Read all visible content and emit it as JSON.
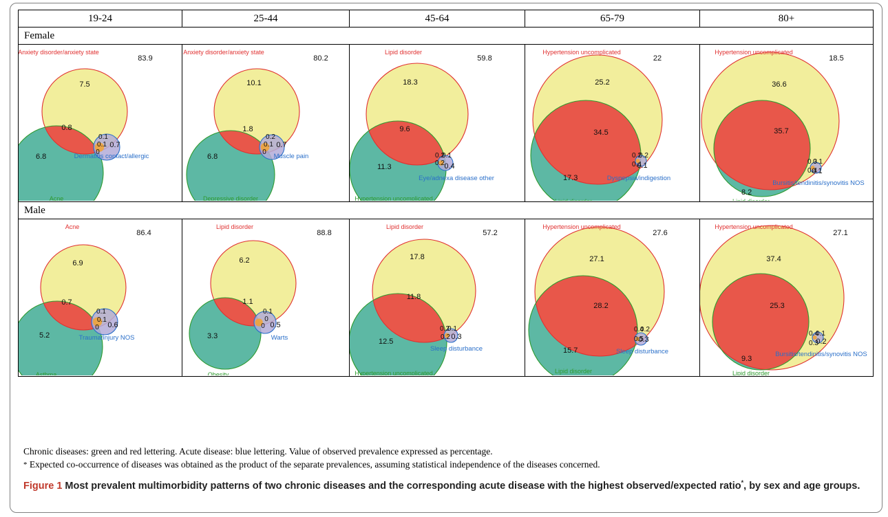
{
  "age_groups": [
    "19-24",
    "25-44",
    "45-64",
    "65-79",
    "80+"
  ],
  "rows": [
    {
      "sex": "Female",
      "cells": [
        {
          "top_label": "Anxiety disorder/anxiety state",
          "bottom_label": "Acne",
          "acute_label": "Dermatitis contact/allergic",
          "ratio": "83.9",
          "v_top": "7.5",
          "v_overlap": "0.8",
          "v_bottom": "6.8",
          "v_acute": "0.7",
          "v_s1": "0.1",
          "v_s2": "0",
          "v_s3": "0.1"
        },
        {
          "top_label": "Anxiety disorder/anxiety state",
          "bottom_label": "Depressive disorder",
          "acute_label": "Muscle pain",
          "ratio": "80.2",
          "v_top": "10.1",
          "v_overlap": "1.8",
          "v_bottom": "6.8",
          "v_acute": "0.7",
          "v_s1": "0.2",
          "v_s2": "0",
          "v_s3": "0.1"
        },
        {
          "top_label": "Lipid disorder",
          "bottom_label": "Hypertension uncomplicated",
          "acute_label": "Eye/adnexa disease other",
          "ratio": "59.8",
          "v_top": "18.3",
          "v_overlap": "9.6",
          "v_bottom": "11.3",
          "v_acute": "0.4",
          "v_s1": "0.2",
          "v_s2": "0.2",
          "v_s3": "0.1"
        },
        {
          "top_label": "Hypertension uncomplicated",
          "bottom_label": "Lipid disorder",
          "acute_label": "Dyspepsia/indigestion",
          "ratio": "22",
          "v_top": "25.2",
          "v_overlap": "34.5",
          "v_bottom": "17.3",
          "v_acute": "0.1",
          "v_s1": "0.2",
          "v_s2": "0.4",
          "v_s3": "0.2"
        },
        {
          "top_label": "Hypertension uncomplicated",
          "bottom_label": "Lipid disorder",
          "acute_label": "Bursitis/tendinitis/synovitis NOS",
          "ratio": "18.5",
          "v_top": "36.6",
          "v_overlap": "35.7",
          "v_bottom": "8.2",
          "v_acute": "0.1",
          "v_s1": "0.3",
          "v_s2": "0.4",
          "v_s3": "0.1"
        }
      ]
    },
    {
      "sex": "Male",
      "cells": [
        {
          "top_label": "Acne",
          "bottom_label": "Asthma",
          "acute_label": "Trauma/injury NOS",
          "ratio": "86.4",
          "v_top": "6.9",
          "v_overlap": "0.7",
          "v_bottom": "5.2",
          "v_acute": "0.6",
          "v_s1": "0.1",
          "v_s2": "0",
          "v_s3": "0.1"
        },
        {
          "top_label": "Lipid disorder",
          "bottom_label": "Obesity",
          "acute_label": "Warts",
          "ratio": "88.8",
          "v_top": "6.2",
          "v_overlap": "1.1",
          "v_bottom": "3.3",
          "v_acute": "0.5",
          "v_s1": "0.1",
          "v_s2": "0",
          "v_s3": "0"
        },
        {
          "top_label": "Lipid disorder",
          "bottom_label": "Hypertension uncomplicated",
          "acute_label": "Sleep disturbance",
          "ratio": "57.2",
          "v_top": "17.8",
          "v_overlap": "11.8",
          "v_bottom": "12.5",
          "v_acute": "0.3",
          "v_s1": "0.2",
          "v_s2": "0.2",
          "v_s3": "0.1"
        },
        {
          "top_label": "Hypertension uncomplicated",
          "bottom_label": "Lipid disorder",
          "acute_label": "Sleep disturbance",
          "ratio": "27.6",
          "v_top": "27.1",
          "v_overlap": "28.2",
          "v_bottom": "15.7",
          "v_acute": "0.3",
          "v_s1": "0.4",
          "v_s2": "0.5",
          "v_s3": "0.2"
        },
        {
          "top_label": "Hypertension uncomplicated",
          "bottom_label": "Lipid disorder",
          "acute_label": "Bursitis/tendinitis/synovitis NOS",
          "ratio": "27.1",
          "v_top": "37.4",
          "v_overlap": "25.3",
          "v_bottom": "9.3",
          "v_acute": "0.2",
          "v_s1": "0.4",
          "v_s2": "0.3",
          "v_s3": "0.1"
        }
      ]
    }
  ],
  "notes": {
    "line1": "Chronic diseases: green and red lettering. Acute disease: blue lettering. Value of observed prevalence expressed as percentage.",
    "line2_star": "*",
    "line2": " Expected co-occurrence of diseases was obtained as the product of the separate prevalences, assuming statistical independence of the diseases concerned."
  },
  "caption": {
    "label": "Figure 1",
    "text_a": " Most prevalent multimorbidity patterns of two chronic diseases and the corresponding acute disease with the highest observed/expected ratio",
    "sup": "*",
    "text_b": ", by sex and age groups."
  },
  "colors": {
    "top_fill": "#f2ee9c",
    "bottom_fill": "#5db8a4",
    "overlap_fill": "#e8574a",
    "acute_fill": "#b3acd8",
    "top_stroke": "#e03030",
    "bottom_stroke": "#2e9a2e",
    "acute_stroke": "#2a6fc9"
  }
}
